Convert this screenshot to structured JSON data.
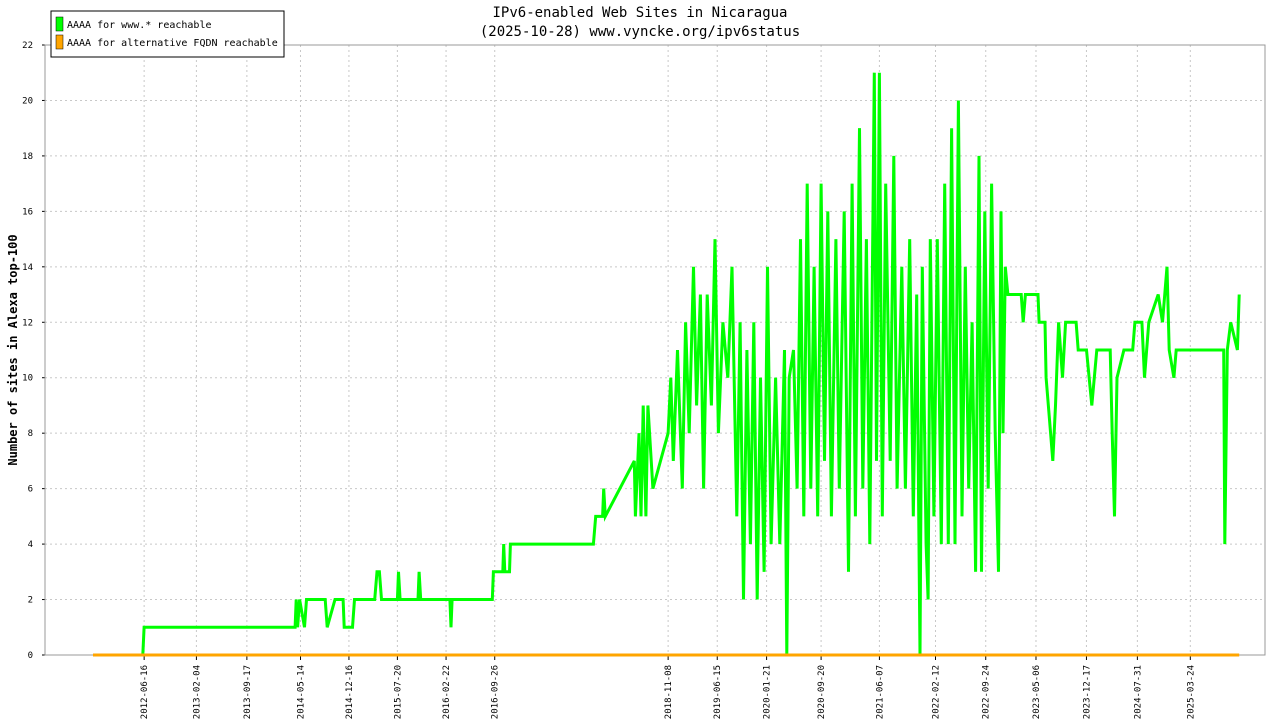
{
  "chart_data": {
    "type": "line",
    "title": "IPv6-enabled Web Sites in Nicaragua",
    "subtitle": "(2025-10-28) www.vyncke.org/ipv6status",
    "y_label": "Number of sites in Alexa top-100",
    "xlim": [
      "2011-04-01",
      "2026-02-20"
    ],
    "xticks": [
      "2012-06-16",
      "2013-02-04",
      "2013-09-17",
      "2014-05-14",
      "2014-12-16",
      "2015-07-20",
      "2016-02-22",
      "2016-09-26",
      "2018-11-08",
      "2019-06-15",
      "2020-01-21",
      "2020-09-20",
      "2021-06-07",
      "2022-02-12",
      "2022-09-24",
      "2023-05-06",
      "2023-12-17",
      "2024-07-31",
      "2025-03-24"
    ],
    "ylim": [
      0,
      22
    ],
    "yticks": [
      0,
      2,
      4,
      6,
      8,
      10,
      12,
      14,
      16,
      18,
      20,
      22
    ],
    "grid": true,
    "legend": "top-left",
    "series": [
      {
        "name": "AAAA for www.* reachable",
        "color": "#00ff00",
        "x": [
          "2012-06-10",
          "2012-06-16",
          "2014-04-20",
          "2014-04-25",
          "2014-05-01",
          "2014-05-10",
          "2014-06-01",
          "2014-06-10",
          "2014-09-01",
          "2014-09-10",
          "2014-10-15",
          "2014-11-20",
          "2014-11-25",
          "2015-01-01",
          "2015-01-10",
          "2015-04-10",
          "2015-04-20",
          "2015-05-01",
          "2015-05-10",
          "2015-07-20",
          "2015-07-25",
          "2015-08-01",
          "2015-10-20",
          "2015-10-25",
          "2015-11-01",
          "2016-03-10",
          "2016-03-15",
          "2016-03-20",
          "2016-09-15",
          "2016-09-20",
          "2016-11-01",
          "2016-11-05",
          "2016-11-10",
          "2016-12-01",
          "2016-12-05",
          "2017-12-10",
          "2017-12-20",
          "2018-01-20",
          "2018-01-25",
          "2018-02-01",
          "2018-06-10",
          "2018-06-15",
          "2018-07-01",
          "2018-07-10",
          "2018-07-20",
          "2018-08-01",
          "2018-08-10",
          "2018-09-01",
          "2018-11-08",
          "2018-11-20",
          "2018-12-01",
          "2018-12-20",
          "2019-01-10",
          "2019-01-25",
          "2019-02-10",
          "2019-03-01",
          "2019-03-15",
          "2019-04-01",
          "2019-04-15",
          "2019-05-01",
          "2019-05-20",
          "2019-06-05",
          "2019-06-20",
          "2019-07-10",
          "2019-08-01",
          "2019-08-20",
          "2019-09-10",
          "2019-09-25",
          "2019-10-10",
          "2019-10-25",
          "2019-11-10",
          "2019-11-25",
          "2019-12-10",
          "2019-12-25",
          "2020-01-10",
          "2020-01-25",
          "2020-02-10",
          "2020-03-01",
          "2020-03-20",
          "2020-04-10",
          "2020-04-20",
          "2020-05-01",
          "2020-05-20",
          "2020-06-05",
          "2020-06-20",
          "2020-07-05",
          "2020-07-20",
          "2020-08-05",
          "2020-08-20",
          "2020-09-05",
          "2020-09-20",
          "2020-10-05",
          "2020-10-20",
          "2020-11-05",
          "2020-11-25",
          "2020-12-10",
          "2021-01-01",
          "2021-01-20",
          "2021-02-05",
          "2021-02-20",
          "2021-03-10",
          "2021-03-25",
          "2021-04-10",
          "2021-04-25",
          "2021-05-15",
          "2021-05-25",
          "2021-06-07",
          "2021-06-20",
          "2021-07-05",
          "2021-07-25",
          "2021-08-10",
          "2021-08-25",
          "2021-09-15",
          "2021-10-01",
          "2021-10-20",
          "2021-11-05",
          "2021-11-20",
          "2021-12-05",
          "2021-12-15",
          "2022-01-01",
          "2022-01-10",
          "2022-01-20",
          "2022-02-05",
          "2022-02-20",
          "2022-03-10",
          "2022-03-25",
          "2022-04-10",
          "2022-04-25",
          "2022-05-10",
          "2022-05-25",
          "2022-06-10",
          "2022-06-25",
          "2022-07-10",
          "2022-07-25",
          "2022-08-10",
          "2022-08-25",
          "2022-09-05",
          "2022-09-20",
          "2022-10-05",
          "2022-10-20",
          "2022-11-05",
          "2022-11-20",
          "2022-12-01",
          "2022-12-10",
          "2022-12-20",
          "2023-01-01",
          "2023-03-01",
          "2023-03-10",
          "2023-03-20",
          "2023-05-15",
          "2023-05-20",
          "2023-06-15",
          "2023-06-20",
          "2023-07-10",
          "2023-07-20",
          "2023-08-01",
          "2023-08-15",
          "2023-09-01",
          "2023-09-15",
          "2023-11-01",
          "2023-11-10",
          "2023-12-17",
          "2024-01-10",
          "2024-02-01",
          "2024-04-01",
          "2024-04-10",
          "2024-04-20",
          "2024-05-01",
          "2024-06-01",
          "2024-07-10",
          "2024-07-20",
          "2024-08-20",
          "2024-09-01",
          "2024-09-20",
          "2024-11-01",
          "2024-11-20",
          "2024-12-10",
          "2024-12-20",
          "2025-01-10",
          "2025-01-20",
          "2025-08-20",
          "2025-08-25",
          "2025-09-05",
          "2025-09-20",
          "2025-10-20",
          "2025-10-28"
        ],
        "values": [
          0,
          1,
          1,
          2,
          1,
          2,
          1,
          2,
          2,
          1,
          2,
          2,
          1,
          1,
          2,
          2,
          3,
          3,
          2,
          2,
          3,
          2,
          2,
          3,
          2,
          2,
          1,
          2,
          2,
          3,
          3,
          4,
          3,
          3,
          4,
          4,
          5,
          5,
          6,
          5,
          7,
          5,
          8,
          5,
          9,
          5,
          9,
          6,
          8,
          10,
          7,
          11,
          6,
          12,
          8,
          14,
          9,
          13,
          6,
          13,
          9,
          15,
          8,
          12,
          10,
          14,
          5,
          12,
          2,
          11,
          4,
          12,
          2,
          10,
          3,
          14,
          4,
          10,
          4,
          11,
          0,
          10,
          11,
          6,
          15,
          5,
          17,
          6,
          14,
          5,
          17,
          7,
          16,
          5,
          15,
          6,
          16,
          3,
          17,
          5,
          19,
          6,
          15,
          4,
          21,
          7,
          21,
          5,
          17,
          7,
          18,
          6,
          14,
          6,
          15,
          5,
          13,
          0,
          14,
          4,
          2,
          15,
          5,
          15,
          4,
          17,
          4,
          19,
          4,
          20,
          5,
          14,
          6,
          12,
          3,
          18,
          3,
          16,
          6,
          17,
          8,
          3,
          16,
          8,
          14,
          13,
          13,
          12,
          13,
          13,
          12,
          12,
          10,
          8,
          7,
          9,
          12,
          10,
          12,
          12,
          11,
          11,
          9,
          11,
          11,
          8,
          5,
          10,
          11,
          11,
          12,
          12,
          10,
          12,
          13,
          12,
          14,
          11,
          10,
          11,
          11,
          4,
          11,
          12,
          11,
          13
        ]
      },
      {
        "name": "AAAA for alternative FQDN reachable",
        "color": "#ffa500",
        "x": [
          "2011-11-01",
          "2025-10-28"
        ],
        "values": [
          0,
          0
        ]
      }
    ]
  }
}
